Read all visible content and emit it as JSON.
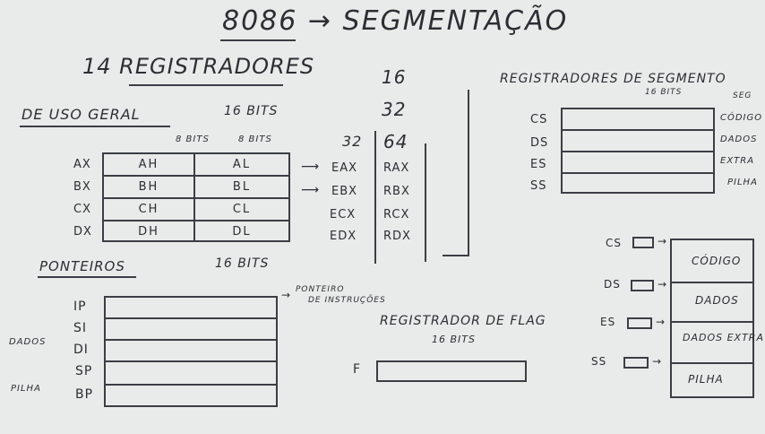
{
  "title": "8086 → SEGMENTAÇÃO",
  "registers_heading": "14 REGISTRADORES",
  "bit_sizes": [
    "16",
    "32",
    "64"
  ],
  "general": {
    "label": "DE USO GERAL",
    "bits": "16 BITS",
    "half_bits_left": "8 BITS",
    "half_bits_right": "8 BITS",
    "col32": "32",
    "rows": [
      {
        "name": "AX",
        "high": "AH",
        "low": "AL",
        "r32": "EAX",
        "r64": "RAX"
      },
      {
        "name": "BX",
        "high": "BH",
        "low": "BL",
        "r32": "EBX",
        "r64": "RBX"
      },
      {
        "name": "CX",
        "high": "CH",
        "low": "CL",
        "r32": "ECX",
        "r64": "RCX"
      },
      {
        "name": "DX",
        "high": "DH",
        "low": "DL",
        "r32": "EDX",
        "r64": "RDX"
      }
    ]
  },
  "pointers": {
    "label": "PONTEIROS",
    "bits": "16 BITS",
    "ip_note_1": "PONTEIRO",
    "ip_note_2": "DE INSTRUÇÕES",
    "group_dados": "DADOS",
    "group_pilha": "PILHA",
    "regs": [
      "IP",
      "SI",
      "DI",
      "SP",
      "BP"
    ]
  },
  "segment_regs": {
    "label": "REGISTRADORES DE SEGMENTO",
    "bits": "16 BITS",
    "sub": "SEG",
    "regs": [
      "CS",
      "DS",
      "ES",
      "SS"
    ],
    "names": [
      "CÓDIGO",
      "DADOS",
      "EXTRA",
      "PILHA"
    ]
  },
  "flag_reg": {
    "label": "REGISTRADOR DE FLAG",
    "bits": "16 BITS",
    "name": "F"
  },
  "memory_map": {
    "pointers": [
      "CS",
      "DS",
      "ES",
      "SS"
    ],
    "blocks": [
      "CÓDIGO",
      "DADOS",
      "DADOS EXTRA",
      "PILHA"
    ]
  }
}
